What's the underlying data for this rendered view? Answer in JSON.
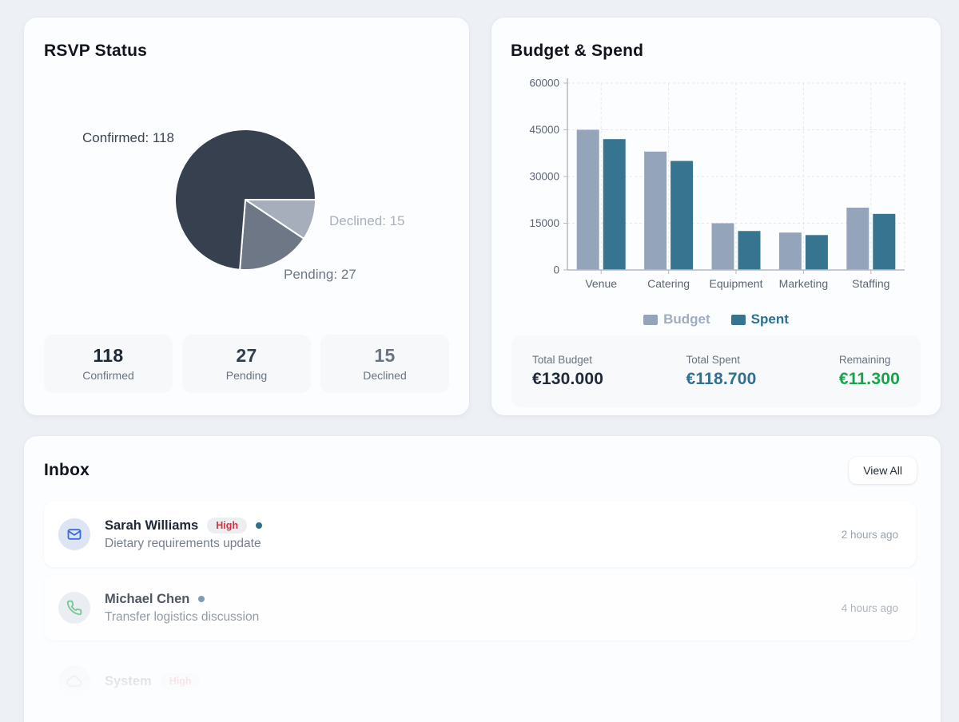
{
  "rsvp_card": {
    "title": "RSVP Status",
    "stats": [
      {
        "value": "118",
        "label": "Confirmed",
        "color": "#1e2936"
      },
      {
        "value": "27",
        "label": "Pending",
        "color": "#323d4e"
      },
      {
        "value": "15",
        "label": "Declined",
        "color": "#6a7380"
      }
    ]
  },
  "budget_card": {
    "title": "Budget & Spend",
    "totals": [
      {
        "label": "Total Budget",
        "value": "€130.000",
        "color": "#1f2937"
      },
      {
        "label": "Total Spent",
        "value": "€118.700",
        "color": "#31708f"
      },
      {
        "label": "Remaining",
        "value": "€11.300",
        "color": "#18a34a"
      }
    ]
  },
  "inbox_card": {
    "title": "Inbox",
    "view_all_label": "View All",
    "priority_text_color": "#d9303e",
    "priority_bg": "#eceef2",
    "messages": [
      {
        "sender": "Sarah Williams",
        "priority": "High",
        "subject": "Dietary requirements update",
        "time": "2 hours ago",
        "icon": "mail-icon",
        "icon_color": "#3b6be0",
        "avatar_bg": "#dde5f3",
        "dot_color": "#2e6f8e"
      },
      {
        "sender": "Michael Chen",
        "subject": "Transfer logistics discussion",
        "time": "4 hours ago",
        "icon": "phone-icon",
        "icon_color": "#4fba78",
        "avatar_bg": "#e6eaef",
        "dot_color": "#63809c"
      },
      {
        "sender": "System",
        "priority": "High",
        "icon": "system-icon",
        "icon_color": "#8d97a5",
        "avatar_bg": "#e6eaef"
      }
    ]
  },
  "chart_data": [
    {
      "type": "pie",
      "title": "RSVP Status",
      "labels": [
        "Confirmed",
        "Pending",
        "Declined"
      ],
      "values": [
        118,
        27,
        15
      ],
      "colors": {
        "Confirmed": "#36404e",
        "Pending": "#6d7786",
        "Declined": "#a6aebb"
      },
      "label_text_colors": {
        "Confirmed": "#3a4454",
        "Pending": "#6d7786",
        "Declined": "#a8b0bd"
      },
      "slice_order_clockwise_from_3oclock": [
        "Declined",
        "Pending",
        "Confirmed"
      ],
      "label_format": "Name: value",
      "legend_position": "none"
    },
    {
      "type": "bar",
      "title": "Budget & Spend",
      "categories": [
        "Venue",
        "Catering",
        "Equipment",
        "Marketing",
        "Staffing"
      ],
      "series": [
        {
          "name": "Budget",
          "color": "#94a5bb",
          "text_color": "#9fadc2",
          "values": [
            45000,
            38000,
            15000,
            12000,
            20000
          ]
        },
        {
          "name": "Spent",
          "color": "#37748f",
          "text_color": "#2e6e8e",
          "values": [
            42000,
            35000,
            12500,
            11200,
            18000
          ]
        }
      ],
      "ylim": [
        0,
        60000
      ],
      "yticks": [
        0,
        15000,
        30000,
        45000,
        60000
      ],
      "grid": true,
      "grid_style": "dashed",
      "legend_position": "bottom"
    }
  ]
}
